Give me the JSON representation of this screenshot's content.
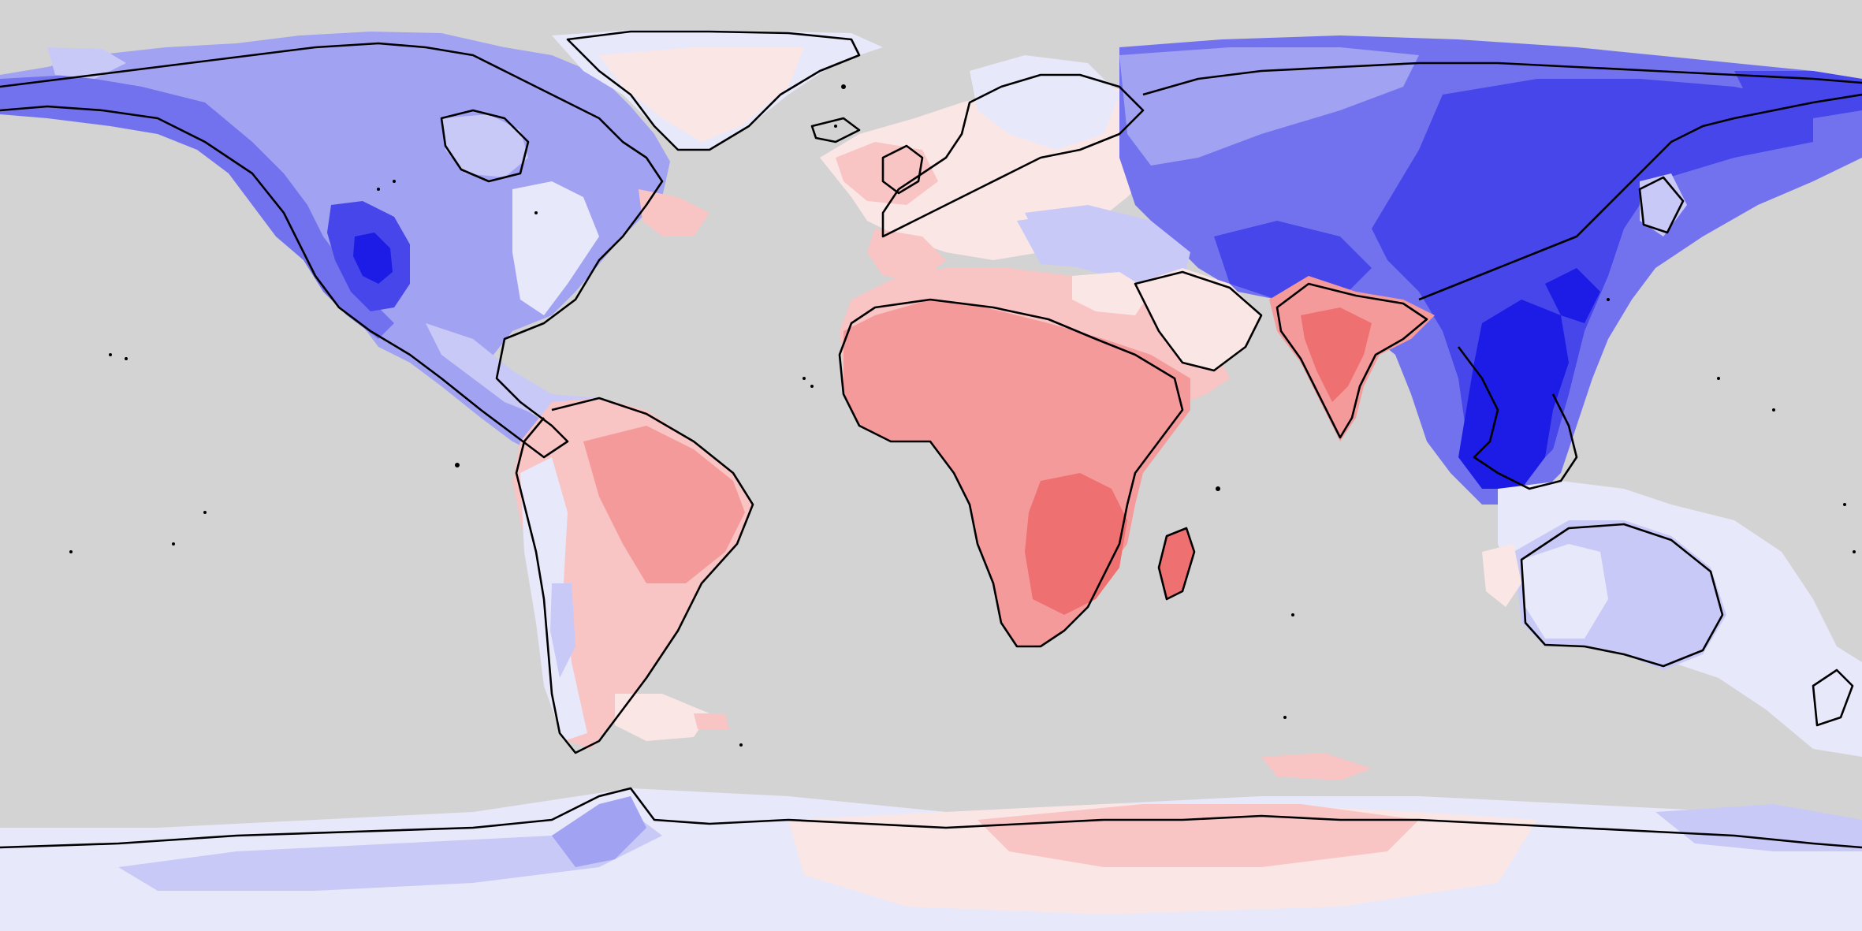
{
  "map": {
    "projection": "equirectangular",
    "background_color": "#d3d3d3",
    "coastline_color": "#000000",
    "palette": {
      "blue_1": "#e8e8fb",
      "blue_2": "#c9c9f7",
      "blue_3": "#a2a2f2",
      "blue_4": "#7272ee",
      "blue_5": "#4646ea",
      "blue_6": "#1c1ce6",
      "red_1": "#fbe6e6",
      "red_2": "#f9c4c4",
      "red_3": "#f49a9a",
      "red_4": "#ef7070",
      "red_5": "#ea5050"
    },
    "regions": [
      {
        "name": "north-america",
        "tone": "blue"
      },
      {
        "name": "greenland",
        "tone": "red"
      },
      {
        "name": "south-america",
        "tone": "red"
      },
      {
        "name": "europe",
        "tone": "red"
      },
      {
        "name": "asia",
        "tone": "blue"
      },
      {
        "name": "india",
        "tone": "red"
      },
      {
        "name": "africa",
        "tone": "red"
      },
      {
        "name": "australia",
        "tone": "blue"
      },
      {
        "name": "antarctica",
        "tone": "mixed"
      }
    ]
  }
}
